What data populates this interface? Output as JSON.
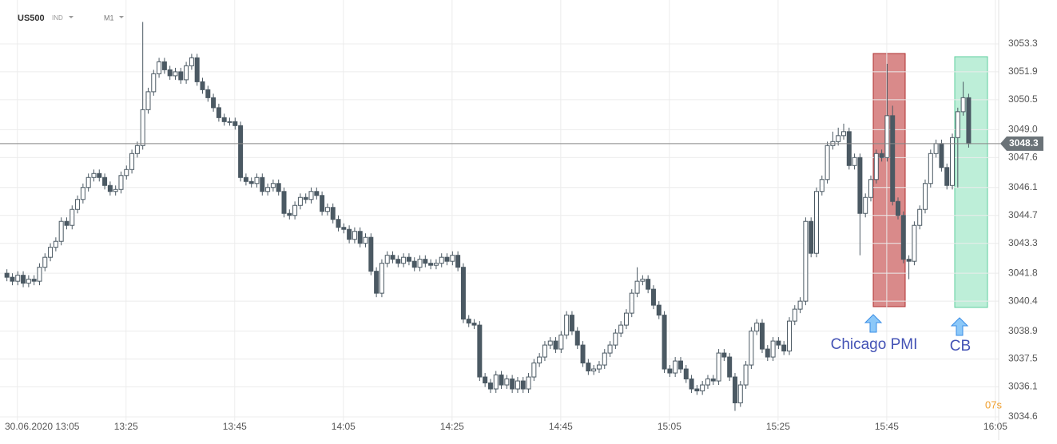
{
  "header": {
    "symbol": "US500",
    "symbol_type": "IND",
    "timeframe": "M1"
  },
  "chart_data": {
    "type": "candlestick",
    "up_color": "#ffffff",
    "down_color": "#4b5963",
    "outline_color": "#4b5963",
    "grid": true,
    "xlim": [
      -1.2,
      182.6
    ],
    "ylim": [
      3034.4,
      3055.5
    ],
    "xticks": [
      {
        "value": 2,
        "label": "30.06.2020  13:05"
      },
      {
        "value": 22,
        "label": "13:25"
      },
      {
        "value": 42,
        "label": "13:45"
      },
      {
        "value": 62,
        "label": "14:05"
      },
      {
        "value": 82,
        "label": "14:25"
      },
      {
        "value": 102,
        "label": "14:45"
      },
      {
        "value": 122,
        "label": "15:05"
      },
      {
        "value": 142,
        "label": "15:25"
      },
      {
        "value": 162,
        "label": "15:45"
      },
      {
        "value": 182,
        "label": "16:05"
      }
    ],
    "yticks": [
      3053.3,
      3051.9,
      3050.5,
      {
        "value": 3049.0,
        "label": "3049.0"
      },
      3047.6,
      3046.1,
      3044.7,
      3043.3,
      3041.8,
      3040.4,
      3038.9,
      3037.5,
      3036.1,
      3034.6
    ],
    "current_price": 3048.3,
    "countdown": "07s",
    "annotations": [
      "Chicago PMI",
      "CB"
    ],
    "open": [
      3041.8,
      3041.6,
      3041.4,
      3041.7,
      3041.3,
      3041.5,
      3041.4,
      3042.1,
      3042.6,
      3043.1,
      3043.4,
      3044.4,
      3044.2,
      3045.0,
      3045.5,
      3046.1,
      3046.6,
      3046.8,
      3046.6,
      3046.2,
      3045.9,
      3046.0,
      3046.7,
      3047.0,
      3047.8,
      3048.2,
      3050.0,
      3050.9,
      3051.8,
      3052.4,
      3052.0,
      3051.7,
      3051.9,
      3051.5,
      3052.2,
      3052.6,
      3051.4,
      3051.0,
      3050.6,
      3050.1,
      3049.6,
      3049.4,
      3049.4,
      3049.2,
      3046.6,
      3046.4,
      3046.3,
      3046.6,
      3045.9,
      3046.1,
      3046.3,
      3045.9,
      3044.8,
      3044.7,
      3045.2,
      3045.6,
      3045.5,
      3045.9,
      3045.7,
      3044.9,
      3045.1,
      3044.5,
      3044.1,
      3044.0,
      3043.5,
      3043.9,
      3043.3,
      3043.6,
      3041.9,
      3040.8,
      3042.3,
      3042.7,
      3042.5,
      3042.3,
      3042.6,
      3042.4,
      3042.1,
      3042.5,
      3042.3,
      3042.2,
      3042.3,
      3042.6,
      3042.4,
      3042.7,
      3042.1,
      3039.5,
      3039.3,
      3039.2,
      3036.6,
      3036.3,
      3036.0,
      3036.7,
      3036.2,
      3036.5,
      3036.0,
      3036.4,
      3036.0,
      3036.6,
      3037.3,
      3037.6,
      3038.2,
      3038.4,
      3038.0,
      3038.7,
      3039.7,
      3038.9,
      3038.2,
      3037.3,
      3036.9,
      3037.0,
      3037.2,
      3037.8,
      3038.2,
      3038.8,
      3039.2,
      3039.8,
      3040.8,
      3041.4,
      3041.5,
      3041.0,
      3040.2,
      3039.7,
      3037.0,
      3036.8,
      3037.4,
      3037.0,
      3036.5,
      3036.0,
      3035.9,
      3036.2,
      3036.5,
      3036.4,
      3037.8,
      3037.6,
      3036.6,
      3035.3,
      3036.2,
      3037.2,
      3038.9,
      3039.3,
      3038.0,
      3037.6,
      3038.4,
      3038.2,
      3037.9,
      3039.4,
      3040.0,
      3040.4,
      3044.4,
      3042.8,
      3045.9,
      3046.5,
      3048.2,
      3048.4,
      3048.7,
      3048.9,
      3047.2,
      3047.6,
      3044.8,
      3045.6,
      3046.5,
      3047.8,
      3047.6,
      3049.7,
      3045.4,
      3044.7,
      3042.5,
      3042.4,
      3044.2,
      3045.0,
      3046.3,
      3047.8,
      3048.3,
      3047.1,
      3046.2,
      3048.6,
      3049.9,
      3050.6
    ],
    "high": [
      3042.0,
      3041.8,
      3041.9,
      3041.9,
      3041.7,
      3041.7,
      3042.3,
      3042.8,
      3043.3,
      3043.6,
      3044.6,
      3044.6,
      3045.2,
      3045.7,
      3046.3,
      3046.8,
      3047.0,
      3047.0,
      3046.8,
      3046.4,
      3046.2,
      3046.9,
      3047.2,
      3048.0,
      3048.4,
      3054.4,
      3051.1,
      3052.0,
      3052.6,
      3052.6,
      3052.2,
      3052.1,
      3052.1,
      3052.4,
      3052.8,
      3052.8,
      3051.6,
      3051.2,
      3050.8,
      3050.3,
      3049.8,
      3049.6,
      3049.6,
      3049.4,
      3046.8,
      3046.6,
      3046.8,
      3046.8,
      3046.3,
      3046.5,
      3046.5,
      3046.1,
      3045.0,
      3045.4,
      3045.8,
      3045.8,
      3046.1,
      3046.1,
      3045.9,
      3045.3,
      3045.3,
      3044.7,
      3044.3,
      3044.2,
      3044.1,
      3044.1,
      3043.8,
      3043.8,
      3042.1,
      3042.5,
      3042.9,
      3042.9,
      3042.7,
      3042.8,
      3042.8,
      3042.6,
      3042.7,
      3042.7,
      3042.5,
      3042.5,
      3042.8,
      3042.8,
      3042.9,
      3042.9,
      3042.3,
      3039.7,
      3039.5,
      3039.4,
      3036.8,
      3036.5,
      3036.9,
      3036.9,
      3036.7,
      3036.7,
      3036.6,
      3036.6,
      3036.8,
      3037.5,
      3037.8,
      3038.4,
      3038.6,
      3038.6,
      3038.9,
      3039.9,
      3039.9,
      3039.1,
      3038.4,
      3037.5,
      3037.2,
      3037.4,
      3038.0,
      3038.4,
      3039.0,
      3039.4,
      3040.0,
      3041.0,
      3042.1,
      3041.7,
      3041.7,
      3041.2,
      3040.4,
      3039.9,
      3037.2,
      3037.6,
      3037.6,
      3037.2,
      3036.7,
      3036.2,
      3036.4,
      3036.7,
      3036.7,
      3038.0,
      3038.0,
      3037.8,
      3036.8,
      3036.4,
      3037.4,
      3039.1,
      3039.5,
      3039.5,
      3038.2,
      3038.6,
      3038.6,
      3038.4,
      3039.6,
      3040.2,
      3040.6,
      3044.6,
      3044.6,
      3046.1,
      3046.7,
      3048.4,
      3048.9,
      3049.1,
      3049.3,
      3049.1,
      3047.8,
      3047.8,
      3045.8,
      3046.7,
      3048.0,
      3048.0,
      3052.3,
      3050.2,
      3045.6,
      3044.9,
      3042.7,
      3044.4,
      3045.2,
      3046.5,
      3048.0,
      3048.5,
      3048.5,
      3047.3,
      3048.8,
      3050.1,
      3051.4,
      3050.8
    ],
    "low": [
      3041.4,
      3041.2,
      3041.2,
      3041.1,
      3041.1,
      3041.2,
      3041.2,
      3041.9,
      3042.4,
      3042.9,
      3043.2,
      3044.0,
      3044.0,
      3044.8,
      3045.3,
      3045.9,
      3046.4,
      3046.4,
      3046.0,
      3045.7,
      3045.7,
      3045.8,
      3046.5,
      3046.8,
      3047.6,
      3048.0,
      3049.8,
      3050.7,
      3051.6,
      3051.8,
      3051.5,
      3051.5,
      3051.3,
      3051.3,
      3052.0,
      3051.2,
      3050.8,
      3050.4,
      3049.9,
      3049.4,
      3049.2,
      3049.2,
      3049.0,
      3046.4,
      3046.2,
      3046.1,
      3046.1,
      3045.7,
      3045.7,
      3045.9,
      3045.7,
      3044.6,
      3044.5,
      3044.5,
      3045.0,
      3045.3,
      3045.3,
      3045.5,
      3044.7,
      3044.7,
      3044.3,
      3043.9,
      3043.8,
      3043.3,
      3043.3,
      3043.1,
      3043.1,
      3041.7,
      3040.6,
      3040.6,
      3042.1,
      3042.3,
      3042.1,
      3042.1,
      3042.2,
      3041.9,
      3041.9,
      3042.1,
      3042.0,
      3042.0,
      3042.1,
      3042.2,
      3042.2,
      3041.9,
      3039.3,
      3039.1,
      3039.0,
      3036.4,
      3036.1,
      3035.8,
      3035.8,
      3036.0,
      3036.0,
      3035.8,
      3035.8,
      3035.8,
      3035.8,
      3036.4,
      3037.1,
      3037.4,
      3038.0,
      3037.8,
      3037.8,
      3038.5,
      3038.7,
      3038.0,
      3037.1,
      3036.7,
      3036.7,
      3036.8,
      3037.0,
      3037.6,
      3038.0,
      3038.6,
      3039.0,
      3039.6,
      3040.6,
      3041.2,
      3040.8,
      3040.0,
      3039.5,
      3036.8,
      3036.6,
      3036.6,
      3036.8,
      3036.3,
      3035.8,
      3035.7,
      3035.7,
      3036.0,
      3036.2,
      3036.2,
      3037.4,
      3036.4,
      3034.9,
      3035.1,
      3036.0,
      3037.0,
      3038.7,
      3037.8,
      3037.4,
      3037.4,
      3038.0,
      3037.7,
      3037.7,
      3039.2,
      3039.8,
      3040.2,
      3042.6,
      3042.6,
      3045.7,
      3046.3,
      3048.0,
      3048.2,
      3048.5,
      3047.0,
      3047.0,
      3042.7,
      3044.6,
      3045.4,
      3046.3,
      3047.4,
      3047.4,
      3045.2,
      3044.5,
      3042.3,
      3041.5,
      3042.2,
      3044.0,
      3044.8,
      3046.1,
      3047.6,
      3046.9,
      3046.0,
      3046.0,
      3046.1,
      3049.7,
      3048.1
    ],
    "close": [
      3041.6,
      3041.4,
      3041.7,
      3041.3,
      3041.5,
      3041.4,
      3042.1,
      3042.6,
      3043.1,
      3043.4,
      3044.4,
      3044.2,
      3045.0,
      3045.5,
      3046.1,
      3046.6,
      3046.8,
      3046.6,
      3046.2,
      3045.9,
      3046.0,
      3046.7,
      3047.0,
      3047.8,
      3048.2,
      3050.0,
      3050.9,
      3051.8,
      3052.4,
      3052.0,
      3051.7,
      3051.9,
      3051.5,
      3052.2,
      3052.6,
      3051.4,
      3051.0,
      3050.6,
      3050.1,
      3049.6,
      3049.4,
      3049.4,
      3049.2,
      3046.6,
      3046.4,
      3046.3,
      3046.6,
      3045.9,
      3046.1,
      3046.3,
      3045.9,
      3044.8,
      3044.7,
      3045.2,
      3045.6,
      3045.5,
      3045.9,
      3045.7,
      3044.9,
      3045.1,
      3044.5,
      3044.1,
      3044.0,
      3043.5,
      3043.9,
      3043.3,
      3043.6,
      3041.9,
      3040.8,
      3042.3,
      3042.7,
      3042.5,
      3042.3,
      3042.6,
      3042.4,
      3042.1,
      3042.5,
      3042.3,
      3042.2,
      3042.3,
      3042.6,
      3042.4,
      3042.7,
      3042.1,
      3039.5,
      3039.3,
      3039.2,
      3036.6,
      3036.3,
      3036.0,
      3036.7,
      3036.2,
      3036.5,
      3036.0,
      3036.4,
      3036.0,
      3036.6,
      3037.3,
      3037.6,
      3038.2,
      3038.4,
      3038.0,
      3038.7,
      3039.7,
      3038.9,
      3038.2,
      3037.3,
      3036.9,
      3037.0,
      3037.2,
      3037.8,
      3038.2,
      3038.8,
      3039.2,
      3039.8,
      3040.8,
      3041.4,
      3041.5,
      3041.0,
      3040.2,
      3039.7,
      3037.0,
      3036.8,
      3037.4,
      3037.0,
      3036.5,
      3036.0,
      3035.9,
      3036.2,
      3036.5,
      3036.4,
      3037.8,
      3037.6,
      3036.6,
      3035.3,
      3036.2,
      3037.2,
      3038.9,
      3039.3,
      3038.0,
      3037.6,
      3038.4,
      3038.2,
      3037.9,
      3039.4,
      3040.0,
      3040.4,
      3044.4,
      3042.8,
      3045.9,
      3046.5,
      3048.2,
      3048.4,
      3048.7,
      3048.9,
      3047.2,
      3047.6,
      3044.8,
      3045.6,
      3046.5,
      3047.8,
      3047.6,
      3049.7,
      3045.4,
      3044.7,
      3042.5,
      3042.4,
      3044.2,
      3045.0,
      3046.3,
      3047.8,
      3048.3,
      3047.1,
      3046.2,
      3048.6,
      3049.9,
      3050.6,
      3048.3
    ]
  }
}
